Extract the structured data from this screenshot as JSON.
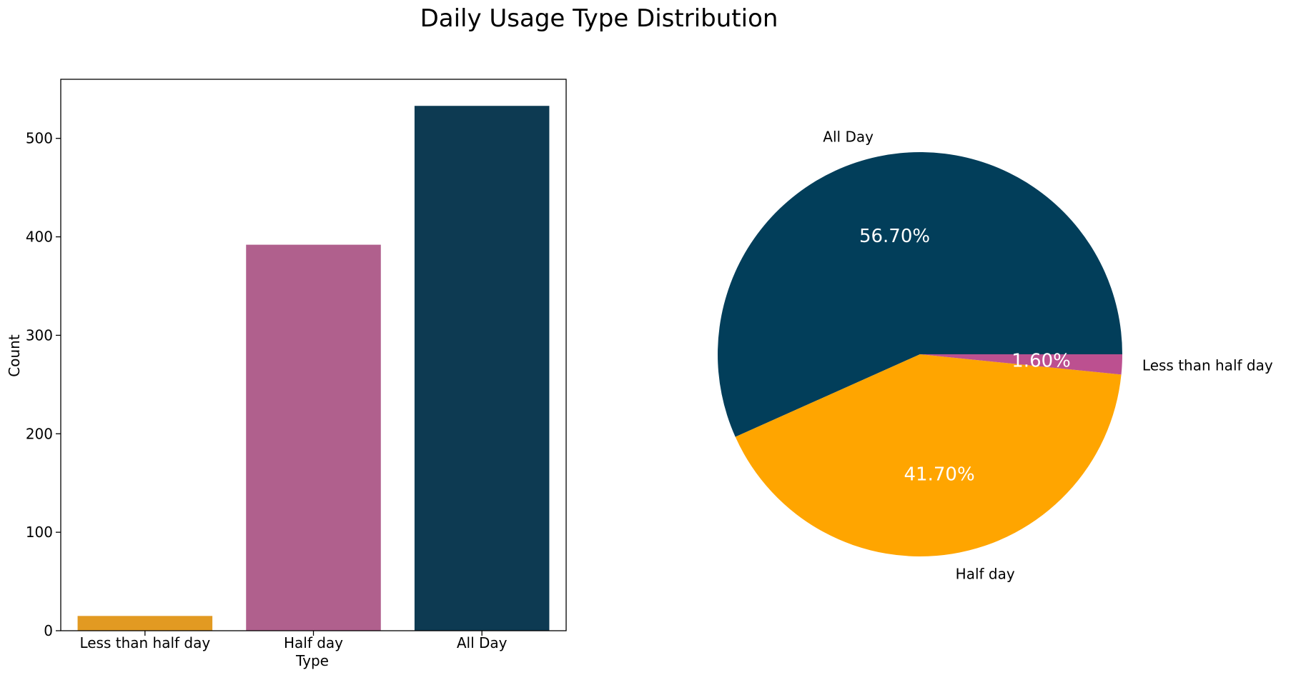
{
  "figure": {
    "title": "Daily Usage Type Distribution"
  },
  "chart_data": [
    {
      "type": "bar",
      "title": "",
      "xlabel": "Type",
      "ylabel": "Count",
      "categories": [
        "Less than half day",
        "Half day",
        "All Day"
      ],
      "values": [
        15,
        392,
        533
      ],
      "colors": [
        "#e29a22",
        "#b0608d",
        "#0d3a52"
      ],
      "ylim": [
        0,
        560
      ],
      "yticks": [
        0,
        100,
        200,
        300,
        400,
        500
      ],
      "ytick_labels": [
        "0",
        "100",
        "200",
        "300",
        "400",
        "500"
      ],
      "grid": false
    },
    {
      "type": "pie",
      "title": "",
      "labels": [
        "All Day",
        "Half day",
        "Less than half day"
      ],
      "values": [
        56.7,
        41.7,
        1.6
      ],
      "pct_labels": [
        "56.70%",
        "41.70%",
        "1.60%"
      ],
      "colors": [
        "#023e5a",
        "#ffa500",
        "#bc5090"
      ]
    }
  ]
}
